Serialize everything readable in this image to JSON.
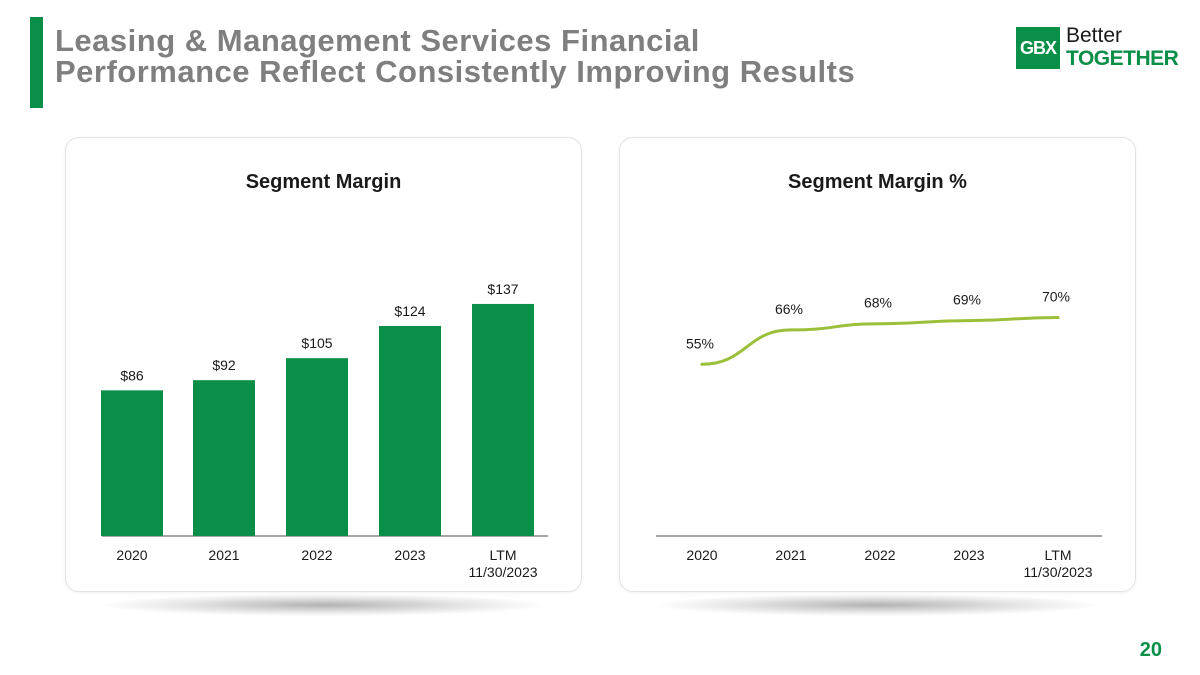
{
  "header": {
    "title_line1": "Leasing & Management Services Financial",
    "title_line2": "Performance Reflect Consistently Improving Results"
  },
  "logo": {
    "mark": "GBX",
    "word1": "Better",
    "word2": "TOGETHER"
  },
  "page_number": "20",
  "colors": {
    "brand_green": "#0a8f48",
    "line_green": "#9cbf3a",
    "title_gray": "#7f7f7f"
  },
  "chart_data": [
    {
      "type": "bar",
      "title": "Segment Margin",
      "categories": [
        "2020",
        "2021",
        "2022",
        "2023",
        "LTM 11/30/2023"
      ],
      "category_lines": [
        [
          "2020"
        ],
        [
          "2021"
        ],
        [
          "2022"
        ],
        [
          "2023"
        ],
        [
          "LTM",
          "11/30/2023"
        ]
      ],
      "values": [
        86,
        92,
        105,
        124,
        137
      ],
      "data_labels": [
        "$86",
        "$92",
        "$105",
        "$124",
        "$137"
      ],
      "ylim": [
        0,
        160
      ],
      "xlabel": "",
      "ylabel": "",
      "grid": false
    },
    {
      "type": "line",
      "title": "Segment Margin %",
      "categories": [
        "2020",
        "2021",
        "2022",
        "2023",
        "LTM 11/30/2023"
      ],
      "category_lines": [
        [
          "2020"
        ],
        [
          "2021"
        ],
        [
          "2022"
        ],
        [
          "2023"
        ],
        [
          "LTM",
          "11/30/2023"
        ]
      ],
      "values": [
        55,
        66,
        68,
        69,
        70
      ],
      "data_labels": [
        "55%",
        "66%",
        "68%",
        "69%",
        "70%"
      ],
      "ylim": [
        0,
        90
      ],
      "xlabel": "",
      "ylabel": "",
      "grid": false
    }
  ]
}
